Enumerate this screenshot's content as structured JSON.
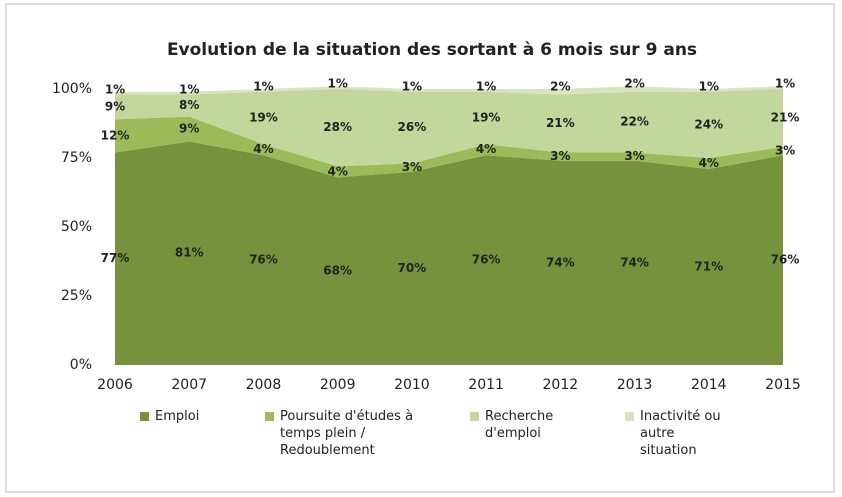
{
  "chart_data": {
    "type": "stacked_area",
    "title": "Evolution de la situation des sortant à 6 mois sur 9 ans",
    "categories": [
      "2006",
      "2007",
      "2008",
      "2009",
      "2010",
      "2011",
      "2012",
      "2013",
      "2014",
      "2015"
    ],
    "series": [
      {
        "name": "Emploi",
        "color": "#76923c",
        "values": [
          77,
          81,
          76,
          68,
          70,
          76,
          74,
          74,
          71,
          76
        ],
        "value_labels": [
          "77%",
          "81%",
          "76%",
          "68%",
          "70%",
          "76%",
          "74%",
          "74%",
          "71%",
          "76%"
        ]
      },
      {
        "name": "Poursuite d'études à temps plein / Redoublement",
        "color": "#9bbb59",
        "values": [
          12,
          9,
          4,
          4,
          3,
          4,
          3,
          3,
          4,
          3
        ],
        "value_labels": [
          "12%",
          "9%",
          "4%",
          "4%",
          "3%",
          "4%",
          "3%",
          "3%",
          "4%",
          "3%"
        ]
      },
      {
        "name": "Recherche d'emploi",
        "color": "#c3d69b",
        "values": [
          9,
          8,
          19,
          28,
          26,
          19,
          21,
          22,
          24,
          21
        ],
        "value_labels": [
          "9%",
          "8%",
          "19%",
          "28%",
          "26%",
          "19%",
          "21%",
          "22%",
          "24%",
          "21%"
        ]
      },
      {
        "name": "Inactivité ou autre situation",
        "color": "#d7e4bd",
        "values": [
          1,
          1,
          1,
          1,
          1,
          1,
          2,
          2,
          1,
          1
        ],
        "value_labels": [
          "1%",
          "1%",
          "1%",
          "1%",
          "1%",
          "1%",
          "2%",
          "2%",
          "1%",
          "1%"
        ]
      }
    ],
    "ylim": [
      0,
      100
    ],
    "yticks": [
      {
        "value": 0,
        "label": "0%"
      },
      {
        "value": 25,
        "label": "25%"
      },
      {
        "value": 50,
        "label": "50%"
      },
      {
        "value": 75,
        "label": "75%"
      },
      {
        "value": 100,
        "label": "100%"
      }
    ]
  }
}
